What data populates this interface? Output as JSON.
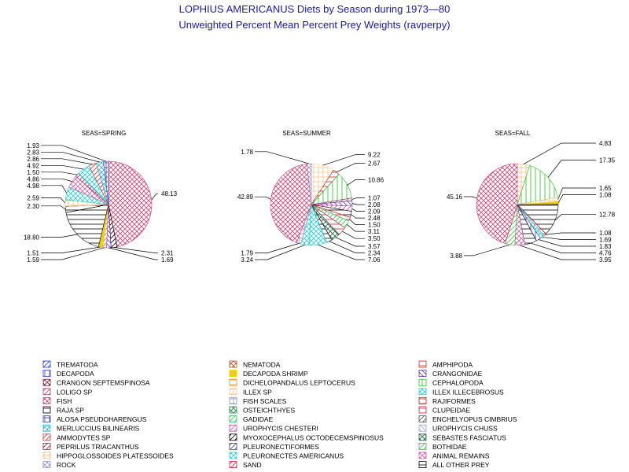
{
  "title_line1": "LOPHIUS AMERICANUS Diets by Season during 1973—80",
  "title_line2": "Unweighted Percent Mean Percent Prey  Weights (ravperpy)",
  "chart_data": [
    {
      "type": "pie",
      "title": "SEAS=SPRING",
      "slices": [
        {
          "cat": "FISH",
          "value": 48.13
        },
        {
          "cat": "MYOXOCEPHALUS OCTODECEMSPINOSUS",
          "value": 2.31
        },
        {
          "cat": "CRANGONIDAE",
          "value": 1.69
        },
        {
          "cat": "UROPHYCIS CHESTERI",
          "value": 1.59
        },
        {
          "cat": "DECAPODA SHRIMP",
          "value": 1.51
        },
        {
          "cat": "RAJA SP",
          "value": 18.8
        },
        {
          "cat": "ALL OTHER PREY",
          "value": 2.3
        },
        {
          "cat": "HIPPOGLOSSOIDES PLATESSOIDES",
          "value": 2.59
        },
        {
          "cat": "PLEURONECTES AMERICANUS",
          "value": 4.98
        },
        {
          "cat": "ANIMAL REMAINS",
          "value": 4.86
        },
        {
          "cat": "PEPRILUS TRIACANTHUS",
          "value": 1.5
        },
        {
          "cat": "ILLEX ILLECEBROSUS",
          "value": 4.92
        },
        {
          "cat": "AMMODYTES SP",
          "value": 2.86
        },
        {
          "cat": "MERLUCCIUS BILINEARIS",
          "value": 2.83
        },
        {
          "cat": "ALOSA PSEUDOHARENGUS",
          "value": 1.93
        }
      ]
    },
    {
      "type": "pie",
      "title": "SEAS=SUMMER",
      "slices": [
        {
          "cat": "ILLEX SP",
          "value": 9.22
        },
        {
          "cat": "RAJIFORMES",
          "value": 2.67
        },
        {
          "cat": "CEPHALOPODA",
          "value": 10.86
        },
        {
          "cat": "LOLIGO SP",
          "value": 1.07
        },
        {
          "cat": "CRANGONIDAE",
          "value": 2.08
        },
        {
          "cat": "UROPHYCIS CHESTERI",
          "value": 2.09
        },
        {
          "cat": "RAJA SP",
          "value": 2.48
        },
        {
          "cat": "AMPHIPODA",
          "value": 1.5
        },
        {
          "cat": "GADIDAE",
          "value": 3.11
        },
        {
          "cat": "CLUPEIDAE",
          "value": 3.5
        },
        {
          "cat": "SEBASTES FASCIATUS",
          "value": 3.57
        },
        {
          "cat": "ALL OTHER PREY",
          "value": 2.34
        },
        {
          "cat": "ILLEX ILLECEBROSUS",
          "value": 7.06
        },
        {
          "cat": "PLEURONECTES AMERICANUS",
          "value": 3.24
        },
        {
          "cat": "FISH SCALES",
          "value": 1.79
        },
        {
          "cat": "FISH",
          "value": 42.89
        },
        {
          "cat": "ROCK",
          "value": 1.78
        }
      ]
    },
    {
      "type": "pie",
      "title": "SEAS=FALL",
      "slices": [
        {
          "cat": "HIPPOGLOSSOIDES PLATESSOIDES",
          "value": 4.83
        },
        {
          "cat": "CEPHALOPODA",
          "value": 17.35
        },
        {
          "cat": "ILLEX SP",
          "value": 1.65
        },
        {
          "cat": "DECAPODA SHRIMP",
          "value": 1.08
        },
        {
          "cat": "ALL OTHER PREY",
          "value": 12.78
        },
        {
          "cat": "RAJIFORMES",
          "value": 1.08
        },
        {
          "cat": "PLEURONECTES AMERICANUS",
          "value": 1.69
        },
        {
          "cat": "DECAPODA",
          "value": 1.83
        },
        {
          "cat": "RAJA SP",
          "value": 4.76
        },
        {
          "cat": "ANIMAL REMAINS",
          "value": 3.95
        },
        {
          "cat": "BOTHIDAE",
          "value": 3.88
        },
        {
          "cat": "FISH",
          "value": 45.16
        }
      ]
    }
  ],
  "legend": [
    {
      "label": "TREMATODA",
      "color": "#1f3fd0",
      "pattern": "diag"
    },
    {
      "label": "NEMATODA",
      "color": "#b8502a",
      "pattern": "xhatch"
    },
    {
      "label": "AMPHIPODA",
      "color": "#d03030",
      "pattern": "hline"
    },
    {
      "label": "DECAPODA",
      "color": "#3040c8",
      "pattern": "vline"
    },
    {
      "label": "DECAPODA SHRIMP",
      "color": "#f0d000",
      "pattern": "solid"
    },
    {
      "label": "CRANGONIDAE",
      "color": "#6030b0",
      "pattern": "antidiag"
    },
    {
      "label": "CRANGON SEPTEMSPINOSA",
      "color": "#7a1a3a",
      "pattern": "xhatch"
    },
    {
      "label": "DICHELOPANDALUS LEPTOCERUS",
      "color": "#f09020",
      "pattern": "hline"
    },
    {
      "label": "CEPHALOPODA",
      "color": "#20c020",
      "pattern": "vline"
    },
    {
      "label": "LOLIGO SP",
      "color": "#a04070",
      "pattern": "diag"
    },
    {
      "label": "ILLEX SP",
      "color": "#f0c890",
      "pattern": "grid"
    },
    {
      "label": "ILLEX ILLECEBROSUS",
      "color": "#20d0e0",
      "pattern": "xhatch"
    },
    {
      "label": "FISH",
      "color": "#d04070",
      "pattern": "xhatch"
    },
    {
      "label": "FISH SCALES",
      "color": "#9090c0",
      "pattern": "grid"
    },
    {
      "label": "RAJIFORMES",
      "color": "#c02020",
      "pattern": "hline"
    },
    {
      "label": "RAJA SP",
      "color": "#000000",
      "pattern": "hline"
    },
    {
      "label": "OSTEICHTHYES",
      "color": "#208040",
      "pattern": "xhatch"
    },
    {
      "label": "CLUPEIDAE",
      "color": "#d02040",
      "pattern": "hline"
    },
    {
      "label": "ALOSA PSEUDOHARENGUS",
      "color": "#4040a0",
      "pattern": "grid"
    },
    {
      "label": "GADIDAE",
      "color": "#30c060",
      "pattern": "diag"
    },
    {
      "label": "ENCHELYOPUS CIMBRIUS",
      "color": "#505050",
      "pattern": "diag"
    },
    {
      "label": "MERLUCCIUS BILINEARIS",
      "color": "#20b0e0",
      "pattern": "xhatch"
    },
    {
      "label": "UROPHYCIS CHESTERI",
      "color": "#d050a0",
      "pattern": "diag"
    },
    {
      "label": "UROPHYCIS CHUSS",
      "color": "#a0a0d0",
      "pattern": "antidiag"
    },
    {
      "label": "AMMODYTES SP",
      "color": "#d03030",
      "pattern": "diag"
    },
    {
      "label": "MYOXOCEPHALUS OCTODECEMSPINOSUS",
      "color": "#000000",
      "pattern": "diag"
    },
    {
      "label": "SEBASTES FASCIATUS",
      "color": "#206040",
      "pattern": "xhatch"
    },
    {
      "label": "PEPRILUS TRIACANTHUS",
      "color": "#a02040",
      "pattern": "diag"
    },
    {
      "label": "PLEURONECTIFORMES",
      "color": "#4040c0",
      "pattern": "diag"
    },
    {
      "label": "BOTHIDAE",
      "color": "#40c040",
      "pattern": "diag"
    },
    {
      "label": "HIPPOGLOSSOIDES PLATESSOIDES",
      "color": "#f0c080",
      "pattern": "grid"
    },
    {
      "label": "PLEURONECTES AMERICANUS",
      "color": "#20d0d0",
      "pattern": "xhatch"
    },
    {
      "label": "ANIMAL REMAINS",
      "color": "#d060a0",
      "pattern": "xhatch"
    },
    {
      "label": "ROCK",
      "color": "#9090d0",
      "pattern": "xhatch"
    },
    {
      "label": "SAND",
      "color": "#d02040",
      "pattern": "diag"
    },
    {
      "label": "ALL OTHER PREY",
      "color": "#000000",
      "pattern": "hline"
    }
  ]
}
